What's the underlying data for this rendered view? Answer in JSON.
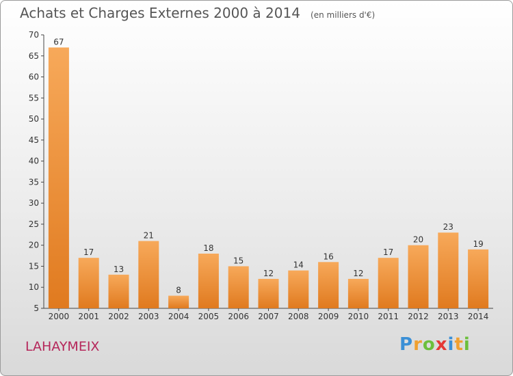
{
  "title": "Achats et Charges Externes 2000 à 2014",
  "unit": "(en milliers d'€)",
  "place": "LAHAYMEIX",
  "logo": {
    "letters": [
      "P",
      "r",
      "o",
      "x",
      "i",
      "t",
      "i"
    ],
    "colors": [
      "#3a8fd6",
      "#f0a030",
      "#6cbf3c",
      "#e53935",
      "#3a8fd6",
      "#f0a030",
      "#6cbf3c"
    ]
  },
  "colors": {
    "bar_light": "#f7a95a",
    "bar_dark": "#e07a1f",
    "axis": "#444444",
    "grid": "#cccccc"
  },
  "chart_data": {
    "type": "bar",
    "categories": [
      "2000",
      "2001",
      "2002",
      "2003",
      "2004",
      "2005",
      "2006",
      "2007",
      "2008",
      "2009",
      "2010",
      "2011",
      "2012",
      "2013",
      "2014"
    ],
    "values": [
      67,
      17,
      13,
      21,
      8,
      18,
      15,
      12,
      14,
      16,
      12,
      17,
      20,
      23,
      19
    ],
    "yticks": [
      5,
      10,
      15,
      20,
      25,
      30,
      35,
      40,
      45,
      50,
      55,
      60,
      65,
      70
    ],
    "ylim": [
      5,
      70
    ],
    "grid": false,
    "data_labels": true
  }
}
